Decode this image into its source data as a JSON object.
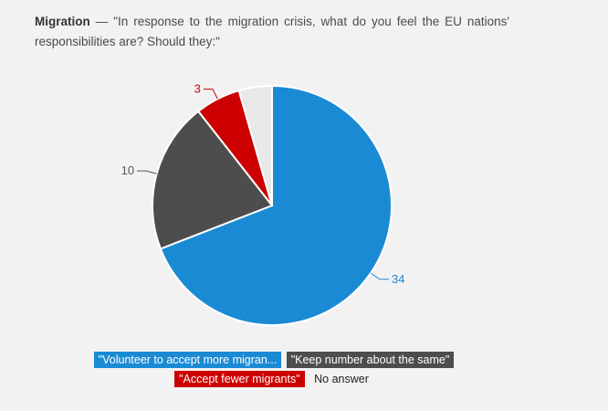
{
  "title": {
    "bold": "Migration",
    "dash": "—",
    "question": "\"In response to the migration crisis, what do you feel the EU nations' responsibilities are? Should they:\""
  },
  "chart_data": {
    "type": "pie",
    "series": [
      {
        "name": "\"Volunteer to accept more migran...",
        "value": 34,
        "color": "#1a8ad4",
        "label_color": "#1a8ad4"
      },
      {
        "name": "\"Keep number about the same\"",
        "value": 10,
        "color": "#4d4d4d",
        "label_color": "#555555"
      },
      {
        "name": "\"Accept fewer migrants\"",
        "value": 3,
        "color": "#cc0000",
        "label_color": "#cc0000"
      },
      {
        "name": "No answer",
        "value": 2.2,
        "color": "#e8e8e8",
        "label_color": "#333333"
      }
    ],
    "data_labels": [
      "34",
      "10",
      "3",
      ""
    ],
    "legend_placement": "bottom-center"
  }
}
